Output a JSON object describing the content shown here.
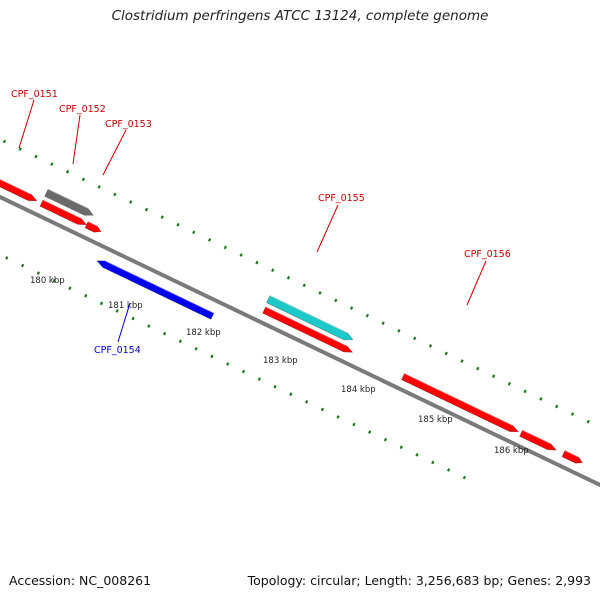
{
  "title": "Clostridium perfringens ATCC 13124, complete genome",
  "footer": {
    "accession": "Accession: NC_008261",
    "topology": "Topology: circular; Length: 3,256,683 bp; Genes: 2,993"
  },
  "colors": {
    "backbone": "#7a7a7a",
    "tick": "#1a7a1a",
    "gene_red": "#ff0000",
    "gene_cyan": "#1cc8c8",
    "gene_blue": "#0000ee",
    "gene_gray": "#6a6a6a",
    "label_red": "#cc0000",
    "label_blue": "#0000cc"
  },
  "scale_labels": [
    "180 kbp",
    "181 kbp",
    "182 kbp",
    "183 kbp",
    "184 kbp",
    "185 kbp",
    "186 kbp"
  ],
  "gene_labels": [
    {
      "id": "CPF_0151",
      "color": "label_red"
    },
    {
      "id": "CPF_0152",
      "color": "label_red"
    },
    {
      "id": "CPF_0153",
      "color": "label_red"
    },
    {
      "id": "CPF_0154",
      "color": "label_blue"
    },
    {
      "id": "CPF_0155",
      "color": "label_red"
    },
    {
      "id": "CPF_0156",
      "color": "label_red"
    }
  ]
}
